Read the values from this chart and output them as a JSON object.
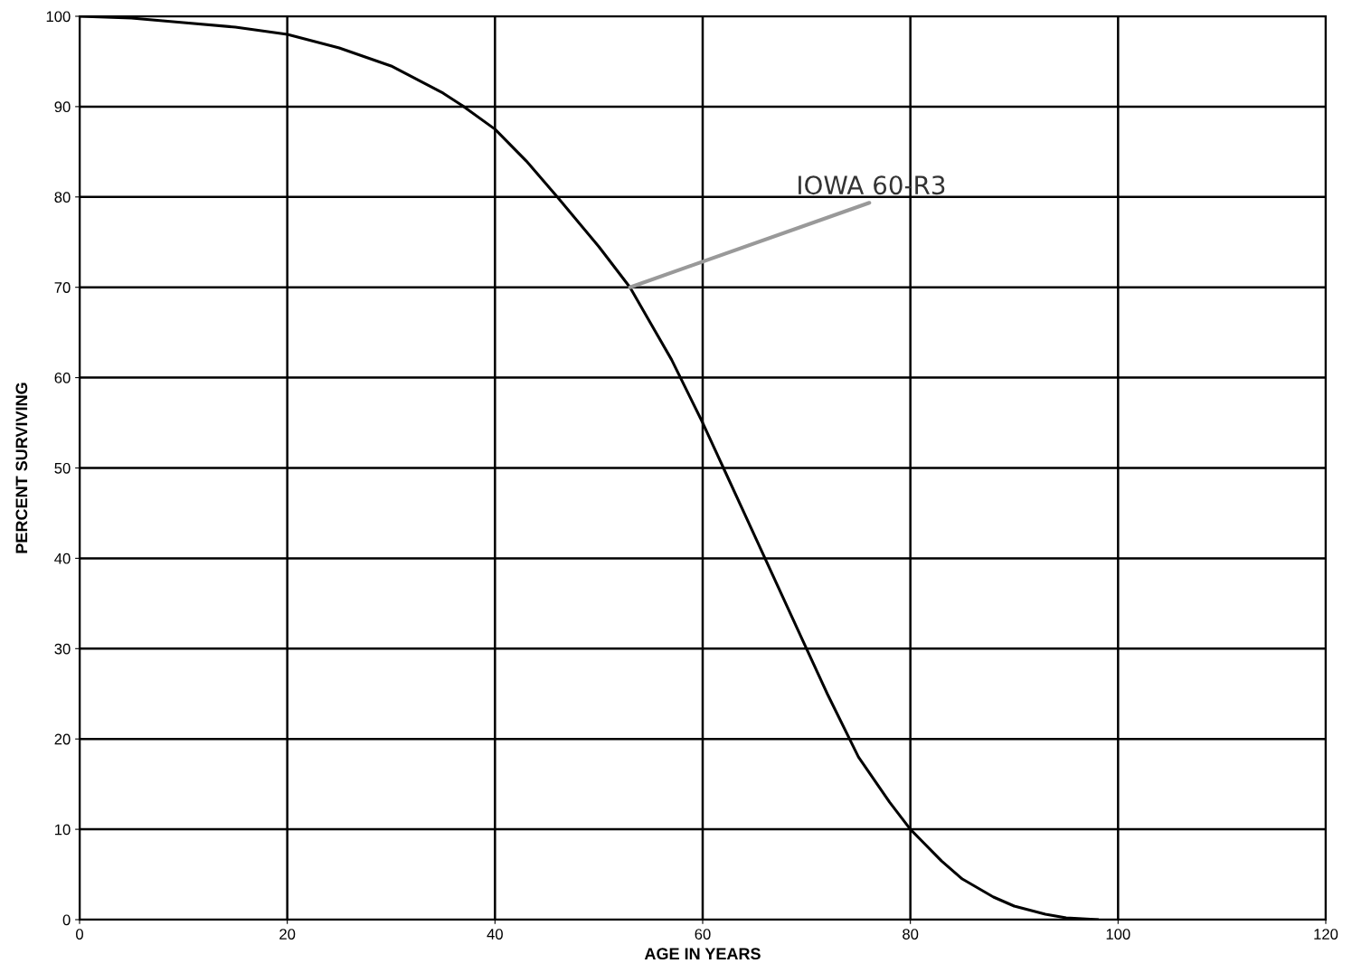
{
  "chart_data": {
    "type": "line",
    "xlabel": "AGE IN YEARS",
    "ylabel": "PERCENT SURVIVING",
    "x": [
      0,
      5,
      10,
      15,
      20,
      25,
      30,
      35,
      37,
      40,
      43,
      46,
      50,
      53,
      55,
      57,
      60,
      62,
      64,
      66,
      68,
      70,
      72,
      75,
      78,
      80,
      83,
      85,
      88,
      90,
      93,
      95,
      98
    ],
    "series": [
      {
        "color": "#000000",
        "values": [
          100,
          99.8,
          99.3,
          98.8,
          98,
          96.5,
          94.5,
          91.5,
          90,
          87.5,
          84,
          80,
          74.5,
          70,
          66,
          62,
          55,
          50,
          45,
          40,
          35,
          30,
          25,
          18,
          13,
          10,
          6.5,
          4.5,
          2.5,
          1.5,
          0.6,
          0.2,
          0
        ]
      }
    ],
    "annotations": [
      {
        "text": "IOWA 60-R3",
        "x": 53,
        "y": 70
      }
    ],
    "xlim": [
      0,
      120
    ],
    "ylim": [
      0,
      100
    ],
    "xticks": [
      0,
      20,
      40,
      60,
      80,
      100,
      120
    ],
    "yticks": [
      0,
      10,
      20,
      30,
      40,
      50,
      60,
      70,
      80,
      90,
      100
    ],
    "grid": true,
    "legend": false,
    "marker": "none",
    "line_style": "solid"
  }
}
